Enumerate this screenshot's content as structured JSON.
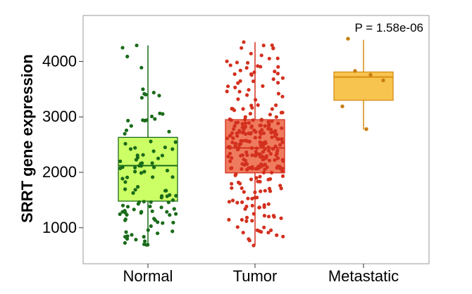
{
  "chart_data": {
    "type": "box",
    "title": "",
    "xlabel": "",
    "ylabel": "SRRT gene expression",
    "annotation": "P = 1.58e-06",
    "categories": [
      "Normal",
      "Tumor",
      "Metastatic"
    ],
    "yticks": [
      1000,
      2000,
      3000,
      4000
    ],
    "ylim": [
      350,
      4830
    ],
    "grid": false,
    "legend": "none",
    "groups": [
      {
        "name": "Normal",
        "fill": "#ccff66",
        "stroke": "#1a6b1a",
        "point_color": "#1a6b1a",
        "n_points": 110,
        "whisker_low": 690,
        "q1": 1480,
        "median": 2120,
        "q3": 2630,
        "whisker_high": 4290,
        "point_seed": 11
      },
      {
        "name": "Tumor",
        "fill": "#ef7b5f",
        "stroke": "#d3301e",
        "point_color": "#d3301e",
        "n_points": 280,
        "whisker_low": 680,
        "q1": 1990,
        "median": 2440,
        "q3": 2950,
        "whisker_high": 4350,
        "point_seed": 29
      },
      {
        "name": "Metastatic",
        "fill": "#f7c450",
        "stroke": "#d98c12",
        "point_color": "#c97d10",
        "whisker_low": 2770,
        "q1": 3300,
        "median": 3720,
        "q3": 3810,
        "whisker_high": 4390,
        "points": [
          4410,
          3830,
          3760,
          3660,
          3190,
          2780
        ]
      }
    ]
  }
}
